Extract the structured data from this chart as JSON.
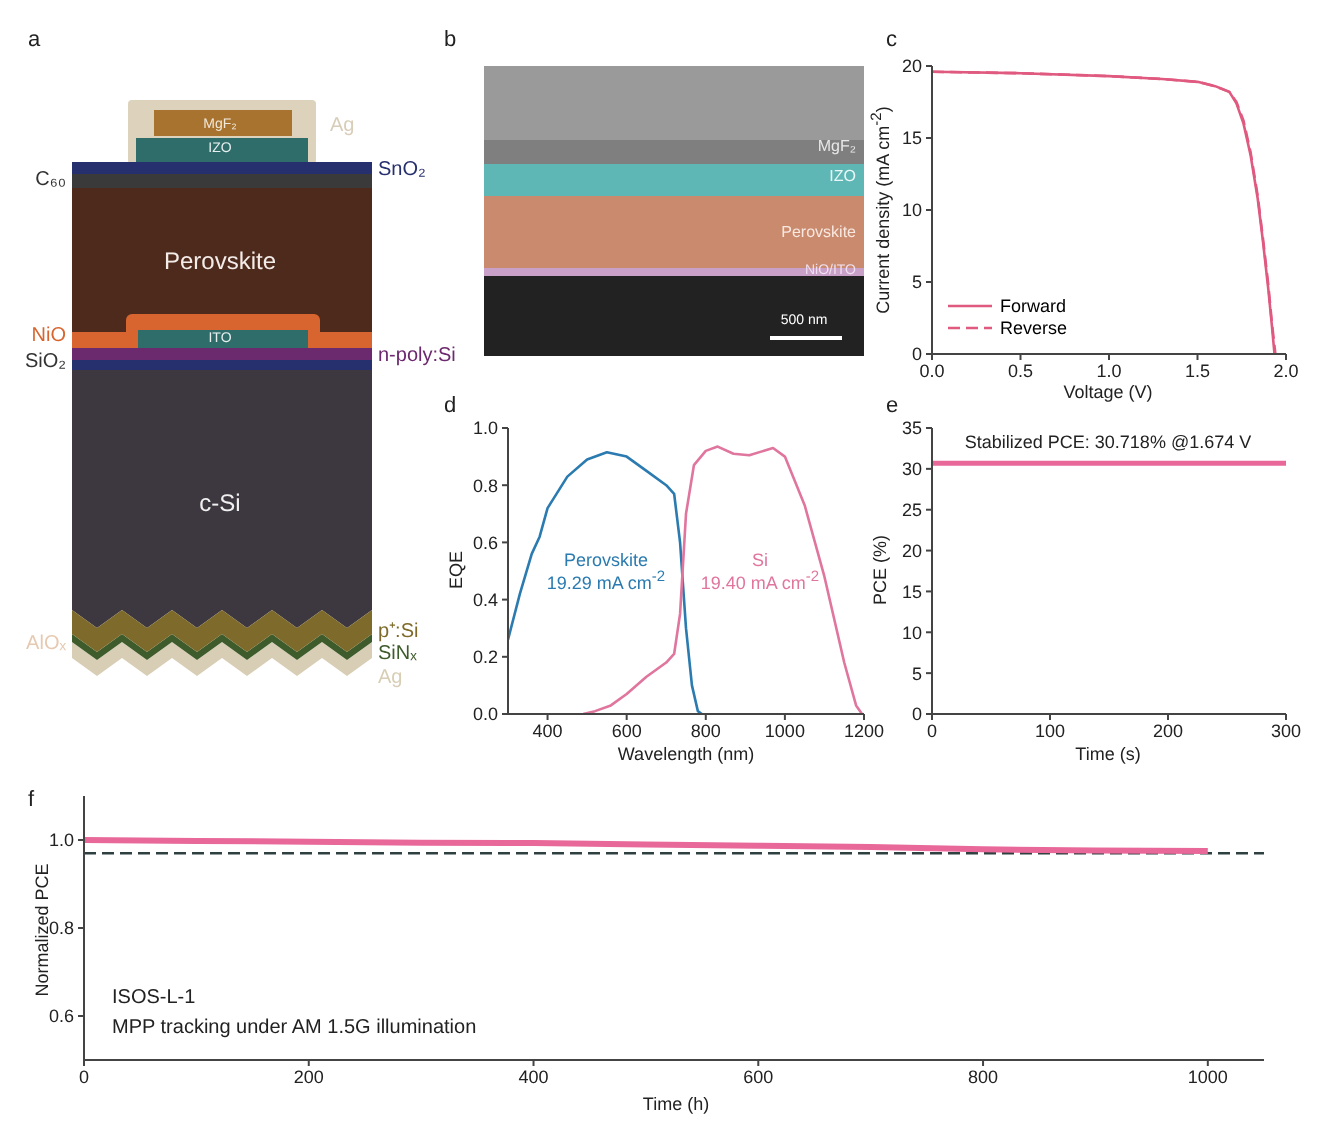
{
  "chart_data": [
    {
      "type": "other",
      "title": "a",
      "annotations": [
        "MgF₂",
        "Ag",
        "IZO",
        "SnO₂",
        "C₆₀",
        "Perovskite",
        "NiO",
        "ITO",
        "n-poly:Si",
        "SiO₂",
        "c-Si",
        "AlOₓ",
        "p⁺:Si",
        "SiNₓ",
        "Ag"
      ]
    },
    {
      "type": "other",
      "title": "b",
      "annotations": [
        "MgF₂",
        "IZO",
        "Perovskite",
        "NiO/ITO",
        "500 nm"
      ]
    },
    {
      "type": "line",
      "title": "c",
      "xlabel": "Voltage (V)",
      "ylabel": "Current density (mA cm$^{-2}$)",
      "xlim": [
        0,
        2
      ],
      "xticks": [
        {
          "value": 0,
          "label": "0.0"
        },
        {
          "value": 0.5,
          "label": "0.5"
        },
        {
          "value": 1,
          "label": "1.0"
        },
        {
          "value": 1.5,
          "label": "1.5"
        },
        {
          "value": 2,
          "label": "2.0"
        }
      ],
      "ylim": [
        0,
        20
      ],
      "yticks": [
        0,
        5,
        10,
        15,
        20
      ],
      "legend": "bottom left",
      "series": [
        {
          "name": "Forward",
          "color": "#e05a80",
          "line_style": "solid",
          "x": [
            0,
            0.5,
            1.0,
            1.3,
            1.5,
            1.6,
            1.68,
            1.72,
            1.76,
            1.8,
            1.84,
            1.87,
            1.9,
            1.92,
            1.935
          ],
          "values": [
            19.6,
            19.5,
            19.3,
            19.1,
            18.9,
            18.6,
            18.2,
            17.4,
            16.0,
            13.8,
            10.8,
            7.8,
            4.5,
            2.0,
            0
          ]
        },
        {
          "name": "Reverse",
          "color": "#e05a80",
          "line_style": "dashed",
          "x": [
            0,
            0.5,
            1.0,
            1.3,
            1.5,
            1.6,
            1.68,
            1.72,
            1.76,
            1.8,
            1.84,
            1.87,
            1.9,
            1.92,
            1.94
          ],
          "values": [
            19.6,
            19.5,
            19.3,
            19.1,
            18.9,
            18.6,
            18.2,
            17.5,
            16.2,
            14.0,
            11.0,
            8.0,
            4.8,
            2.2,
            0
          ]
        }
      ]
    },
    {
      "type": "line",
      "title": "d",
      "xlabel": "Wavelength (nm)",
      "ylabel": "EQE",
      "xlim": [
        300,
        1200
      ],
      "xticks": [
        400,
        600,
        800,
        1000,
        1200
      ],
      "ylim": [
        0,
        1
      ],
      "yticks": [
        {
          "value": 0,
          "label": "0.0"
        },
        {
          "value": 0.2,
          "label": "0.2"
        },
        {
          "value": 0.4,
          "label": "0.4"
        },
        {
          "value": 0.6,
          "label": "0.6"
        },
        {
          "value": 0.8,
          "label": "0.8"
        },
        {
          "value": 1,
          "label": "1.0"
        }
      ],
      "annotations": [
        "19.29 mA cm$^{-2}$",
        "19.40 mA cm$^{-2}$"
      ],
      "series": [
        {
          "name": "Perovskite",
          "color": "#2b7bb0",
          "x": [
            300,
            330,
            360,
            380,
            400,
            450,
            500,
            550,
            600,
            650,
            700,
            720,
            735,
            750,
            765,
            780,
            790
          ],
          "values": [
            0.26,
            0.42,
            0.56,
            0.62,
            0.72,
            0.83,
            0.89,
            0.915,
            0.9,
            0.85,
            0.8,
            0.77,
            0.6,
            0.3,
            0.1,
            0.01,
            0
          ]
        },
        {
          "name": "Si",
          "color": "#e0759e",
          "x": [
            490,
            520,
            560,
            600,
            650,
            700,
            720,
            735,
            750,
            770,
            800,
            830,
            870,
            910,
            970,
            1000,
            1050,
            1100,
            1150,
            1180,
            1195
          ],
          "values": [
            0,
            0.01,
            0.03,
            0.07,
            0.13,
            0.18,
            0.21,
            0.35,
            0.7,
            0.87,
            0.92,
            0.935,
            0.91,
            0.905,
            0.93,
            0.9,
            0.73,
            0.48,
            0.18,
            0.03,
            0
          ]
        }
      ]
    },
    {
      "type": "line",
      "title": "e",
      "xlabel": "Time (s)",
      "ylabel": "PCE (%)",
      "xlim": [
        0,
        300
      ],
      "xticks": [
        0,
        100,
        200,
        300
      ],
      "ylim": [
        0,
        35
      ],
      "yticks": [
        0,
        5,
        10,
        15,
        20,
        25,
        30,
        35
      ],
      "annotations": [
        "Stabilized PCE: 30.718% @1.674 V"
      ],
      "series": [
        {
          "color": "#e8689a",
          "x": [
            0,
            100,
            200,
            300
          ],
          "values": [
            30.7,
            30.7,
            30.7,
            30.7
          ]
        }
      ]
    },
    {
      "type": "line",
      "title": "f",
      "xlabel": "Time (h)",
      "ylabel": "Normalized PCE",
      "xlim": [
        0,
        1050
      ],
      "xticks": [
        0,
        200,
        400,
        600,
        800,
        1000
      ],
      "ylim": [
        0.5,
        1.1
      ],
      "yticks": [
        {
          "value": 0.6,
          "label": "0.6"
        },
        {
          "value": 0.8,
          "label": "0.8"
        },
        {
          "value": 1,
          "label": "1.0"
        }
      ],
      "annotations": [
        "ISOS-L-1",
        "MPP tracking under AM 1.5G illumination"
      ],
      "ref_lines": [
        {
          "axis": "y",
          "value": 0.97,
          "color": "#2f4040",
          "line_style": "dashed"
        }
      ],
      "series": [
        {
          "color": "#e8689a",
          "x": [
            0,
            100,
            200,
            300,
            400,
            500,
            600,
            700,
            800,
            900,
            1000
          ],
          "values": [
            1.0,
            0.998,
            0.996,
            0.994,
            0.993,
            0.99,
            0.987,
            0.984,
            0.979,
            0.976,
            0.975
          ]
        }
      ]
    }
  ]
}
